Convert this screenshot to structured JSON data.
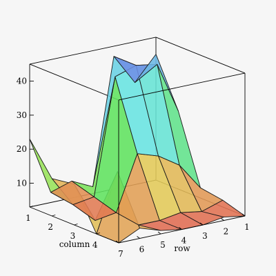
{
  "chart_data": {
    "type": "surface3d",
    "xlabel": "row",
    "ylabel": "column",
    "rows": [
      1,
      2,
      3,
      4,
      5,
      6,
      7
    ],
    "columns": [
      1,
      2,
      3,
      4,
      5
    ],
    "row_tick_labels": [
      "1",
      "2",
      "3",
      "4",
      "5",
      "6",
      "7"
    ],
    "column_tick_labels": [
      "1",
      "2",
      "3",
      "4"
    ],
    "z_tick_labels": [
      "10",
      "20",
      "30",
      "40"
    ],
    "z_ticks": [
      10,
      20,
      30,
      40
    ],
    "zlim": [
      3,
      45
    ],
    "z": [
      [
        40,
        33,
        42,
        5,
        8,
        6,
        23
      ],
      [
        26,
        41,
        42,
        40,
        6,
        5,
        14
      ],
      [
        6,
        14,
        18,
        20,
        4,
        3,
        15
      ],
      [
        5,
        3,
        4,
        3,
        3,
        20,
        3
      ],
      [
        3,
        4,
        3,
        3,
        4,
        6,
        3
      ]
    ],
    "box": true,
    "shading": "z-hue"
  }
}
